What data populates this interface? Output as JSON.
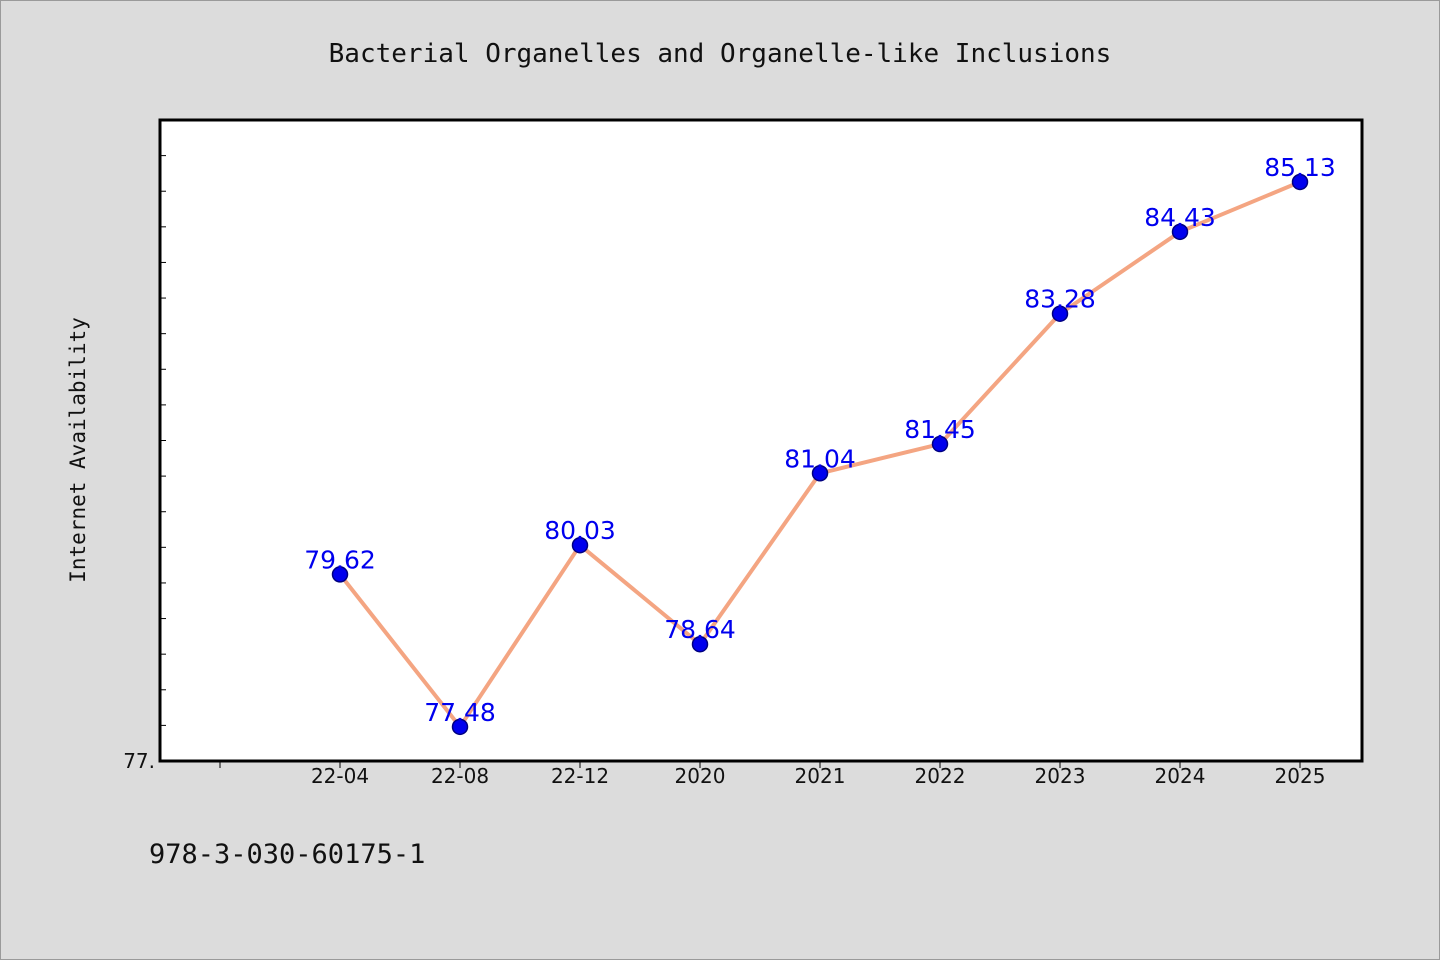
{
  "chart_data": {
    "type": "line",
    "title": "Bacterial Organelles and Organelle-like Inclusions",
    "xlabel": "",
    "ylabel": "Internet Availability",
    "categories": [
      "22-04",
      "22-08",
      "22-12",
      "2020",
      "2021",
      "2022",
      "2023",
      "2024",
      "2025"
    ],
    "series": [
      {
        "values": [
          79.62,
          77.48,
          80.03,
          78.64,
          81.04,
          81.45,
          83.28,
          84.43,
          85.13
        ]
      }
    ],
    "data_labels": [
      "79.62",
      "77.48",
      "80.03",
      "78.64",
      "81.04",
      "81.45",
      "83.28",
      "84.43",
      "85.13"
    ],
    "ylim": [
      77.0,
      86.0
    ],
    "y_tick_label": "77.",
    "grid": false,
    "colors": {
      "line": "#f4a582",
      "marker": "#0000ee",
      "marker_edge": "#000080",
      "label": "#0000ee",
      "background": "#dcdcdc",
      "plot_area": "#ffffff"
    }
  },
  "caption": "978-3-030-60175-1"
}
